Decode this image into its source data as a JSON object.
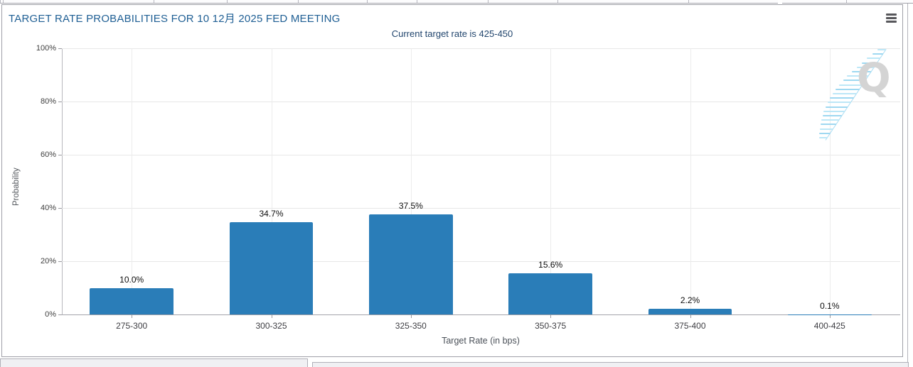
{
  "panel": {
    "title": "TARGET RATE PROBABILITIES FOR 10 12月 2025 FED MEETING",
    "subtitle": "Current target rate is 425-450"
  },
  "watermark": {
    "letter": "Q"
  },
  "chart_data": {
    "type": "bar",
    "title": "TARGET RATE PROBABILITIES FOR 10 12月 2025 FED MEETING",
    "subtitle": "Current target rate is 425-450",
    "categories": [
      "275-300",
      "300-325",
      "325-350",
      "350-375",
      "375-400",
      "400-425"
    ],
    "values": [
      10.0,
      34.7,
      37.5,
      15.6,
      2.2,
      0.1
    ],
    "value_labels": [
      "10.0%",
      "34.7%",
      "37.5%",
      "15.6%",
      "2.2%",
      "0.1%"
    ],
    "xlabel": "Target Rate (in bps)",
    "ylabel": "Probability",
    "ylim": [
      0,
      100
    ],
    "y_ticks": [
      "0%",
      "20%",
      "40%",
      "60%",
      "80%",
      "100%"
    ],
    "bar_color": "#2a7db8",
    "grid": true,
    "legend_position": "none"
  }
}
